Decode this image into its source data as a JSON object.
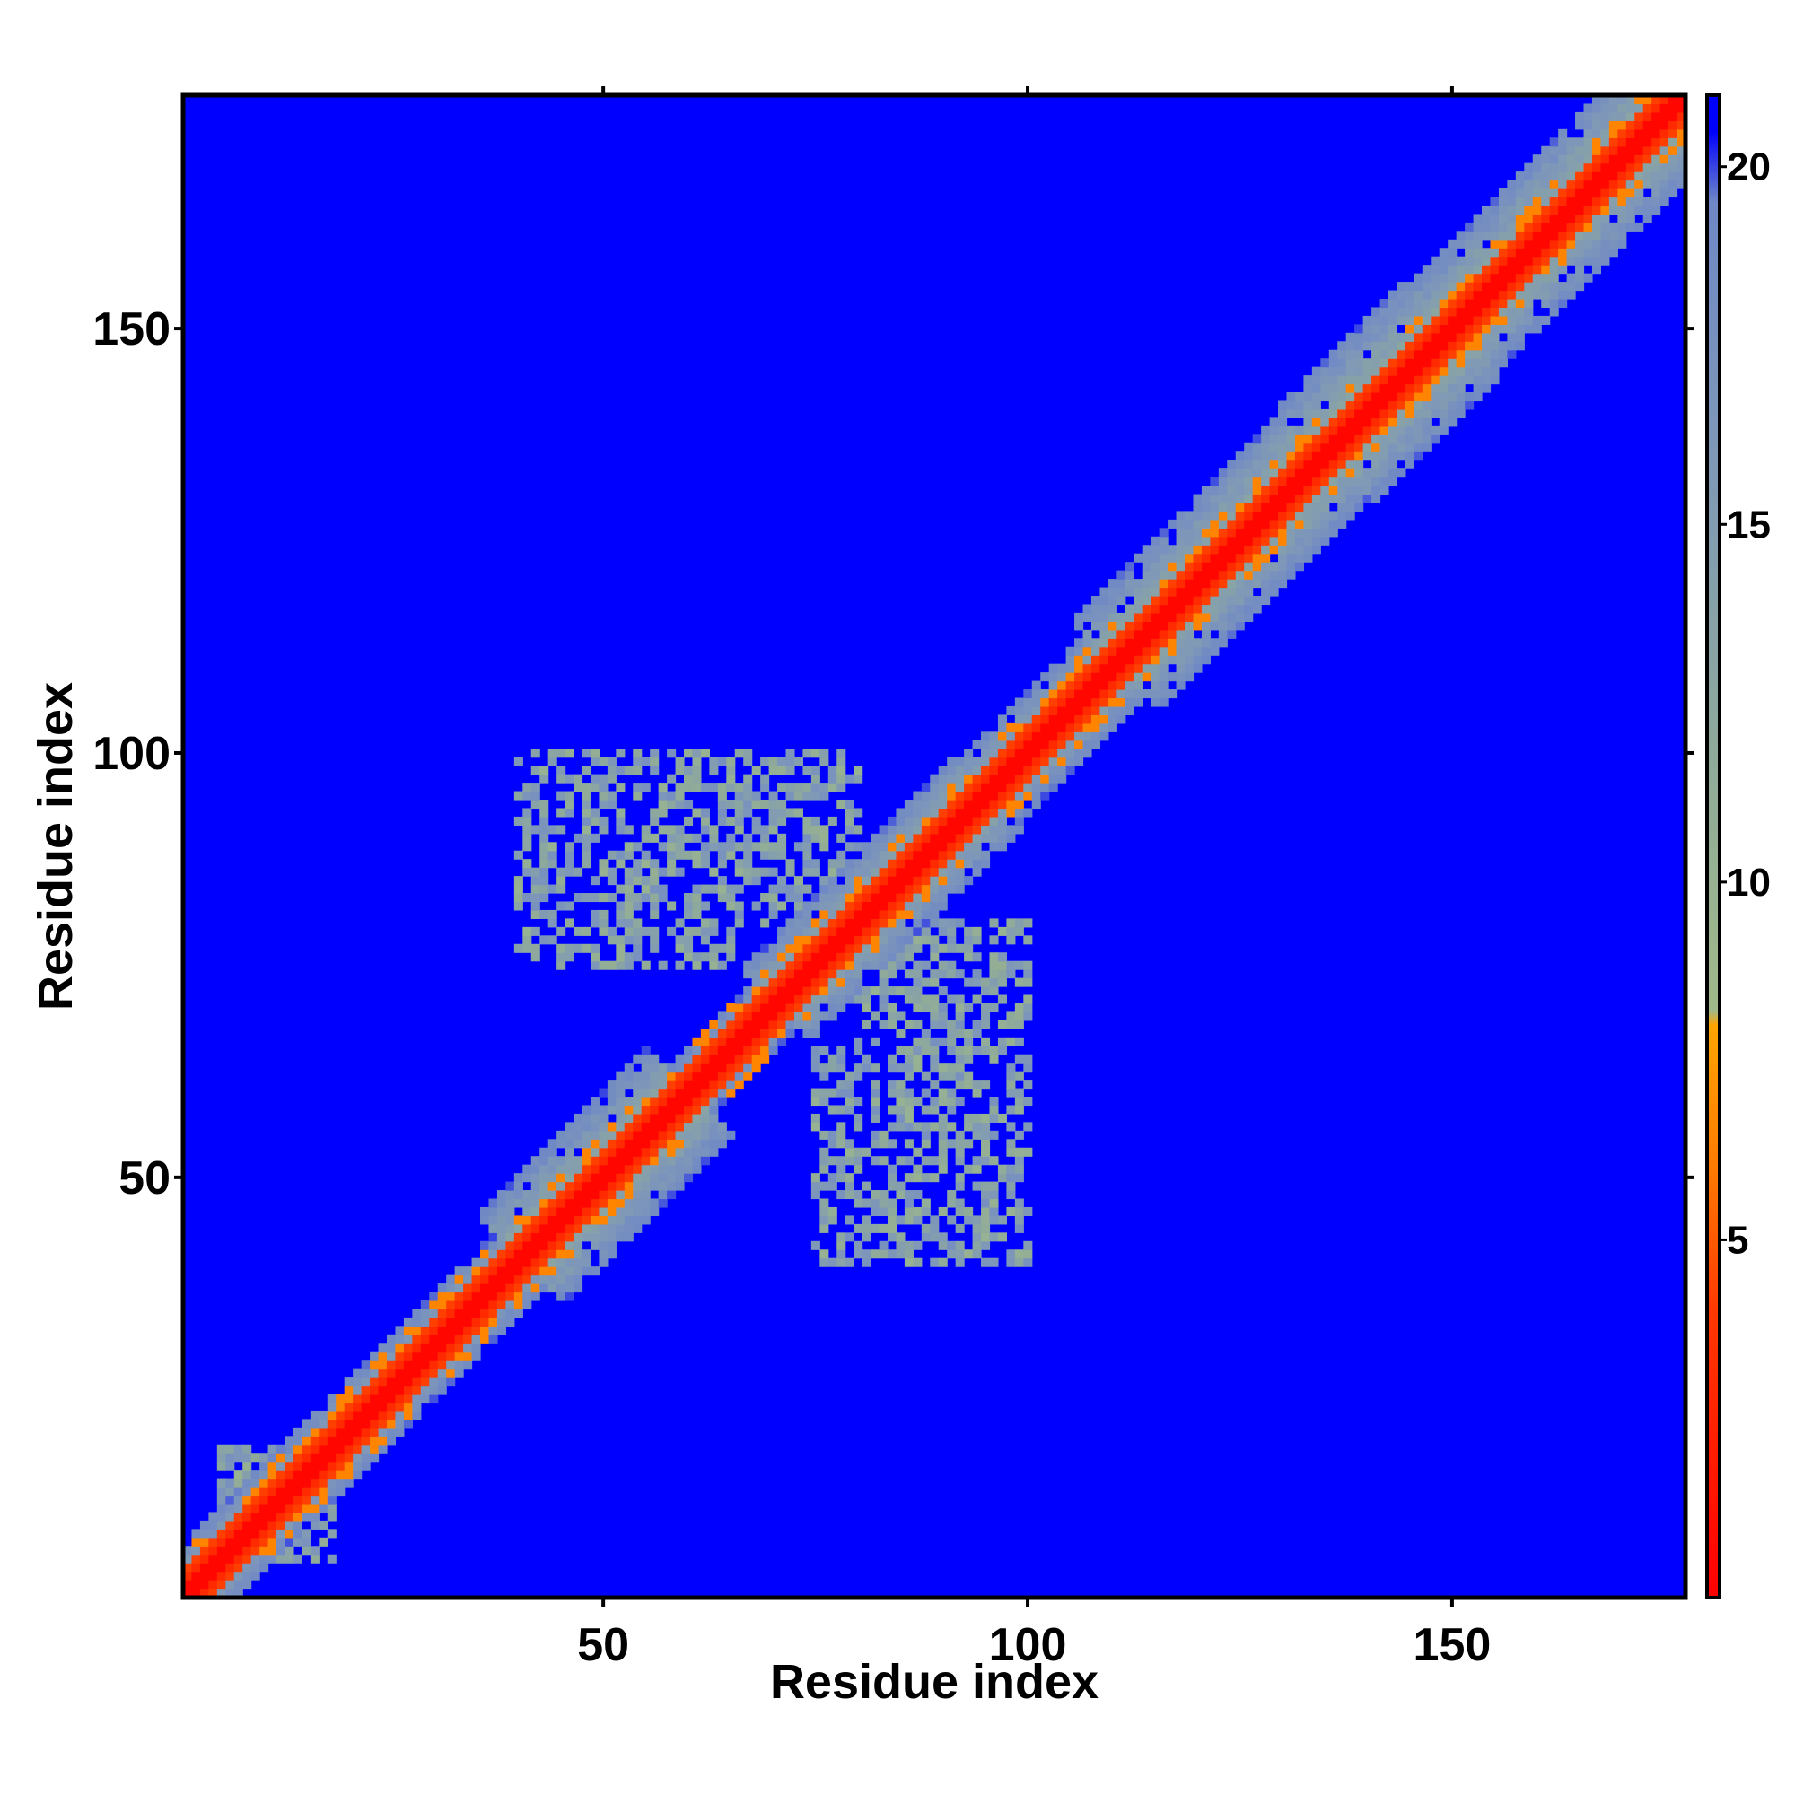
{
  "chart_data": {
    "type": "heatmap",
    "title": "",
    "xlabel": "Residue index",
    "ylabel": "Residue index",
    "xlim": [
      1,
      177
    ],
    "ylim": [
      1,
      177
    ],
    "x_ticks": [
      "50",
      "100",
      "150"
    ],
    "y_ticks": [
      "50",
      "100",
      "150"
    ],
    "colorbar": {
      "range": [
        0,
        21
      ],
      "ticks": [
        "5",
        "10",
        "15",
        "20"
      ],
      "stops": [
        {
          "value": 0,
          "color": "#ff0000"
        },
        {
          "value": 4,
          "color": "#ff3800"
        },
        {
          "value": 6,
          "color": "#ff7a00"
        },
        {
          "value": 8,
          "color": "#ffa500"
        },
        {
          "value": 8.2,
          "color": "#a0b98a"
        },
        {
          "value": 12,
          "color": "#8ea99c"
        },
        {
          "value": 16,
          "color": "#7f98b8"
        },
        {
          "value": 19.5,
          "color": "#6f88c6"
        },
        {
          "value": 20.5,
          "color": "#0000ff"
        },
        {
          "value": 21,
          "color": "#0000ff"
        }
      ]
    },
    "background_color": "#0000ff",
    "diagonal_color": "#ff0000",
    "grid": false,
    "matrix_description": "symmetric residue-residue distance map, size 177x177",
    "regions": {
      "near_diagonal_halfwidths": [
        {
          "from": 1,
          "to": 40,
          "value": 6
        },
        {
          "from": 40,
          "to": 60,
          "value": 10
        },
        {
          "from": 60,
          "to": 70,
          "value": 5
        },
        {
          "from": 70,
          "to": 95,
          "value": 8
        },
        {
          "from": 95,
          "to": 110,
          "value": 7
        },
        {
          "from": 110,
          "to": 135,
          "value": 10
        },
        {
          "from": 135,
          "to": 150,
          "value": 11
        },
        {
          "from": 150,
          "to": 177,
          "value": 10
        }
      ],
      "off_diagonal_blobs": [
        {
          "i_range": [
            40,
            65
          ],
          "j_range": [
            75,
            100
          ]
        },
        {
          "i_range": [
            60,
            80
          ],
          "j_range": [
            80,
            100
          ]
        },
        {
          "i_range": [
            5,
            18
          ],
          "j_range": [
            2,
            18
          ]
        }
      ]
    }
  }
}
